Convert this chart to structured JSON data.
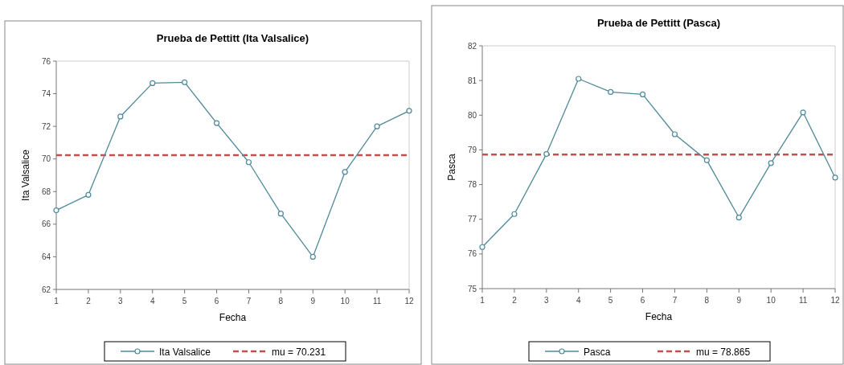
{
  "chart_data": [
    {
      "type": "line",
      "title": "Prueba de Pettitt (Ita Valsalice)",
      "xlabel": "Fecha",
      "ylabel": "Ita Valsalice",
      "x": [
        1,
        2,
        3,
        4,
        5,
        6,
        7,
        8,
        9,
        10,
        11,
        12
      ],
      "series": [
        {
          "name": "Ita Valsalice",
          "color": "#4f8a9a",
          "values": [
            66.85,
            67.8,
            72.6,
            74.65,
            74.7,
            72.2,
            69.8,
            66.65,
            64.0,
            69.2,
            72.0,
            72.95
          ]
        }
      ],
      "ref_lines": [
        {
          "axis": "y",
          "value": 70.231,
          "label": "mu = 70.231",
          "color": "#c0504d",
          "line_style": "dashed"
        }
      ],
      "xlim": [
        1,
        12
      ],
      "xticks": [
        1,
        2,
        3,
        4,
        5,
        6,
        7,
        8,
        9,
        10,
        11,
        12
      ],
      "ylim": [
        62,
        76
      ],
      "yticks": [
        62,
        64,
        66,
        68,
        70,
        72,
        74,
        76
      ],
      "grid": false,
      "legend": "bottom",
      "marker": "circle",
      "line_style": "solid"
    },
    {
      "type": "line",
      "title": "Prueba de Pettitt (Pasca)",
      "xlabel": "Fecha",
      "ylabel": "Pasca",
      "x": [
        1,
        2,
        3,
        4,
        5,
        6,
        7,
        8,
        9,
        10,
        11,
        12
      ],
      "series": [
        {
          "name": "Pasca",
          "color": "#4f8a9a",
          "values": [
            76.2,
            77.15,
            78.88,
            81.05,
            80.67,
            80.6,
            79.45,
            78.7,
            77.05,
            78.62,
            80.08,
            78.2
          ]
        }
      ],
      "ref_lines": [
        {
          "axis": "y",
          "value": 78.865,
          "label": "mu = 78.865",
          "color": "#c0504d",
          "line_style": "dashed"
        }
      ],
      "xlim": [
        1,
        12
      ],
      "xticks": [
        1,
        2,
        3,
        4,
        5,
        6,
        7,
        8,
        9,
        10,
        11,
        12
      ],
      "ylim": [
        75,
        82
      ],
      "yticks": [
        75,
        76,
        77,
        78,
        79,
        80,
        81,
        82
      ],
      "grid": false,
      "legend": "bottom",
      "marker": "circle",
      "line_style": "solid"
    }
  ]
}
